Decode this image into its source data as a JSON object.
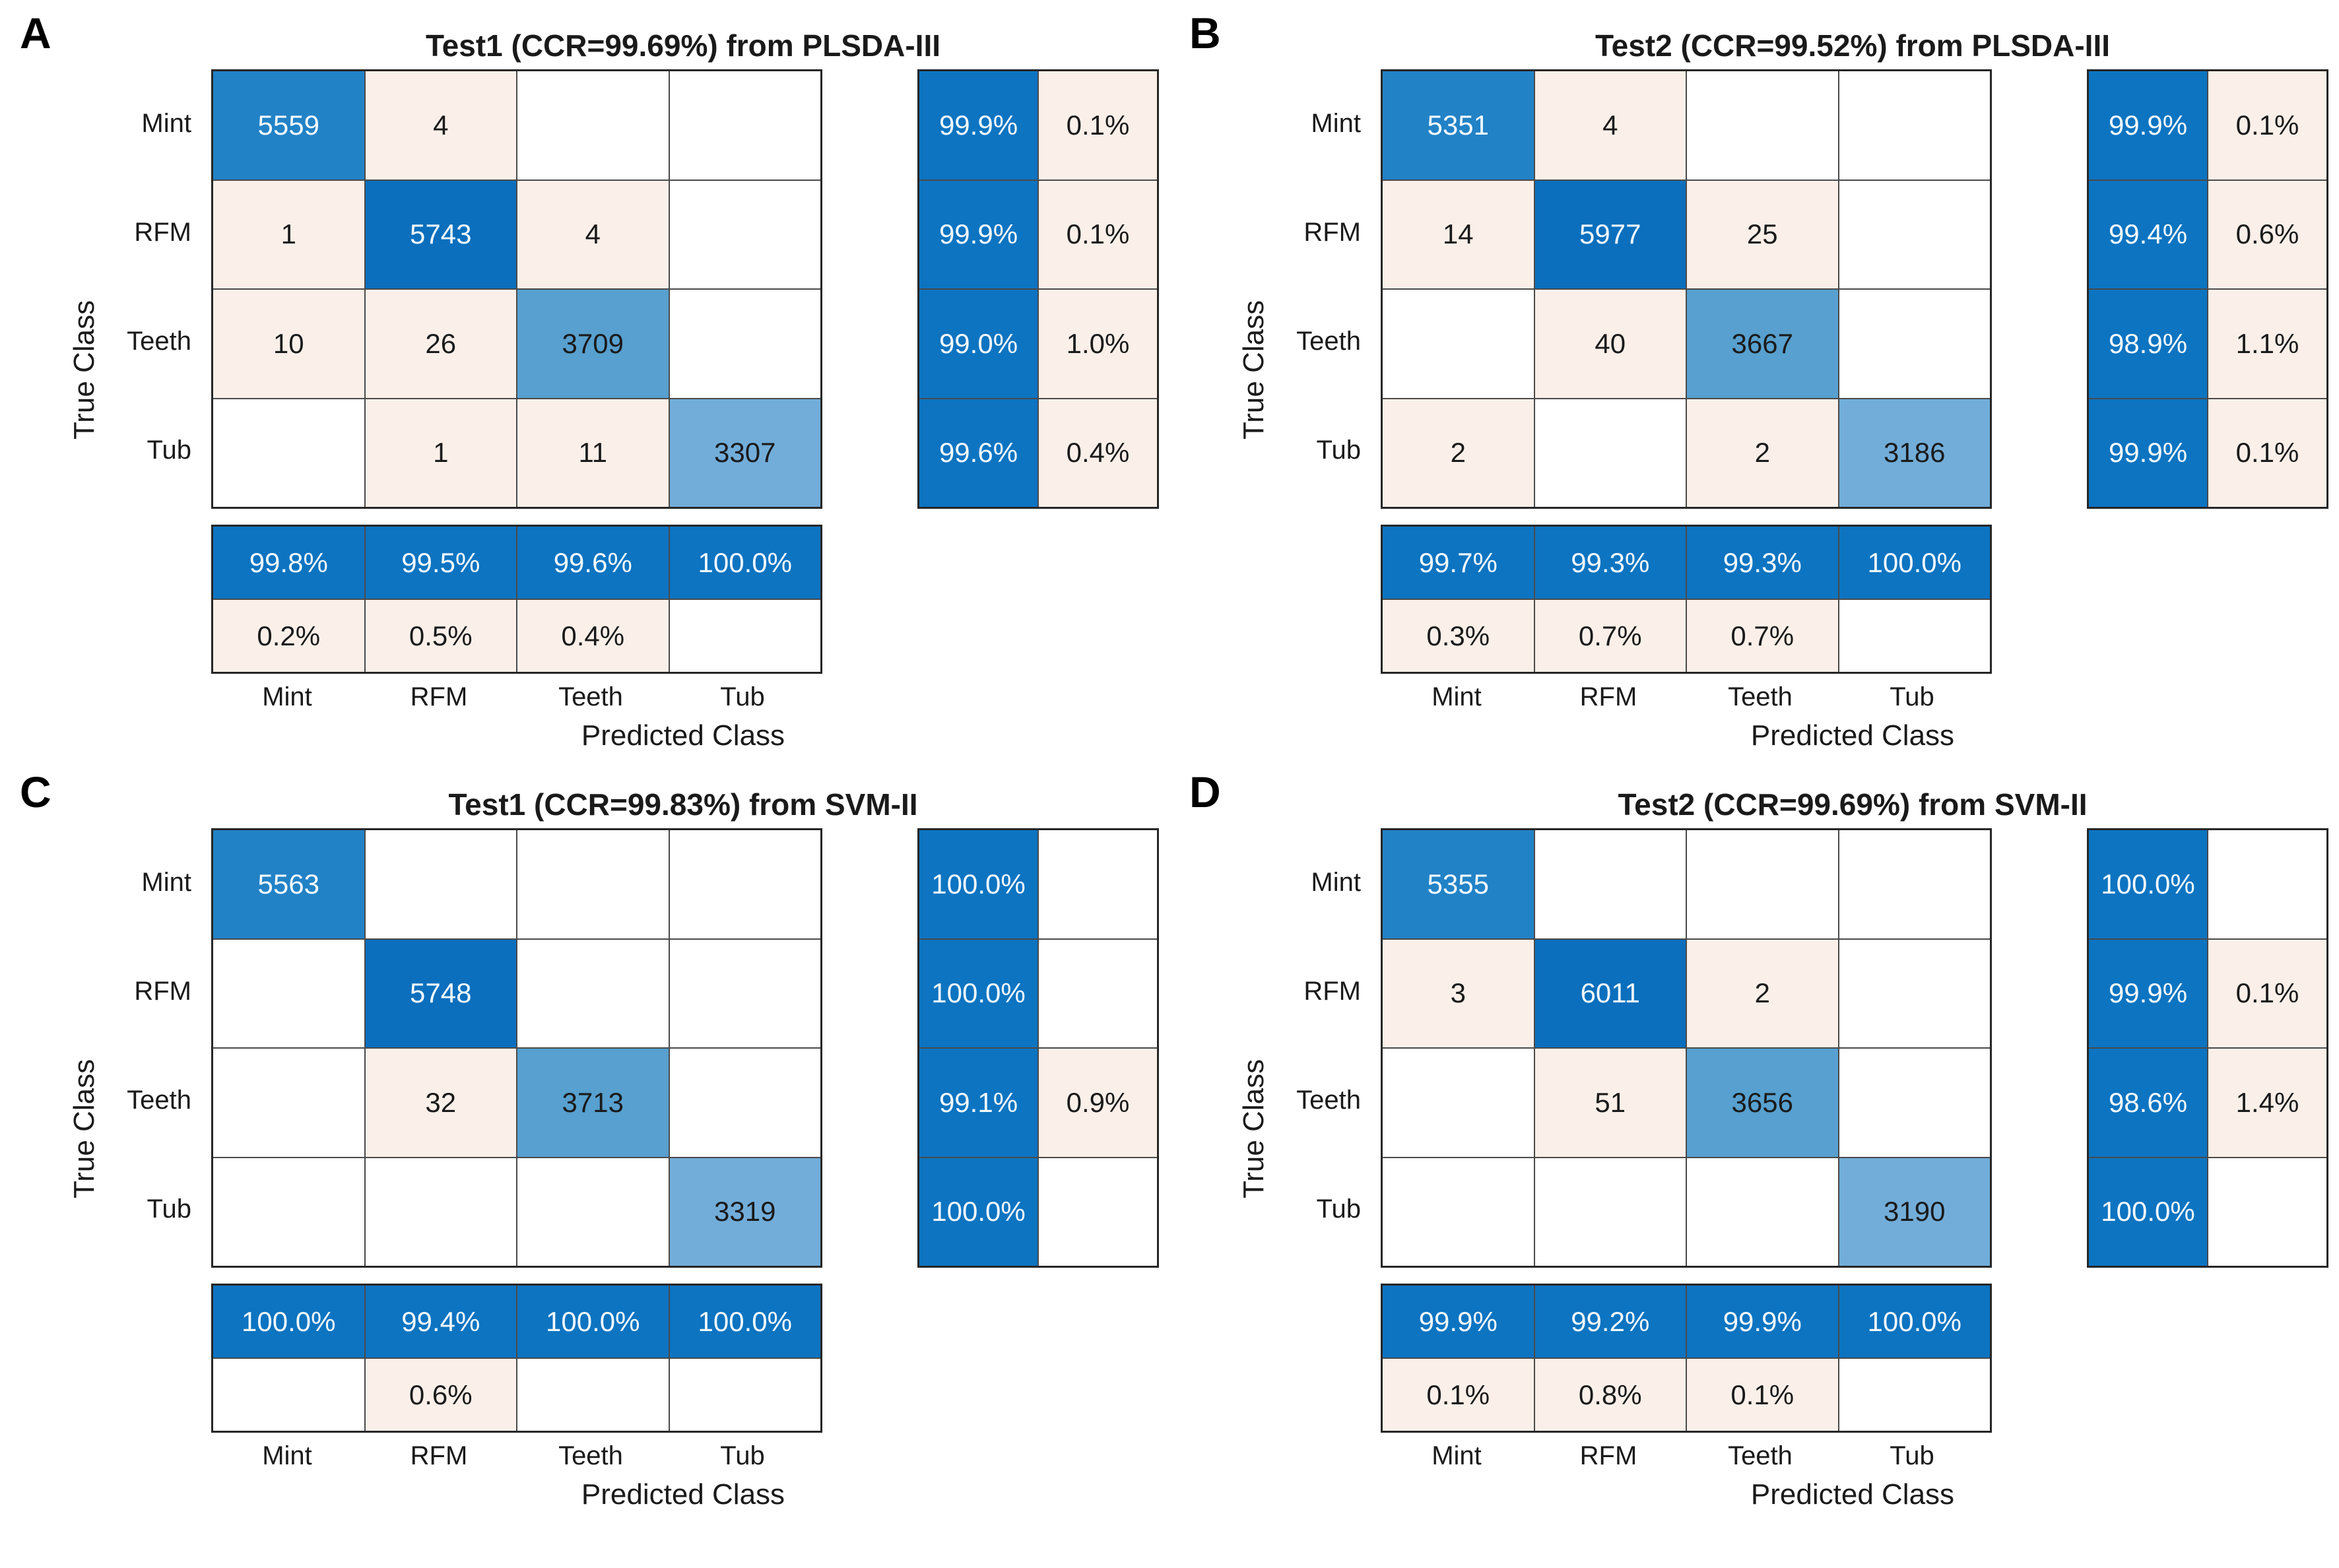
{
  "figure": {
    "background": "#ffffff",
    "description_palette": {
      "diagonal_dark_blue": "#0b6fbd",
      "diagonal_high_blue": "#2282c6",
      "diagonal_mid_blue": "#57a0cf",
      "diagonal_light_blue": "#72add9",
      "offdiagonal_pink": "#fbf0e9",
      "summary_blue": "#0d74c1",
      "grid_line": "#4a4a4a",
      "outer_border": "#262626",
      "text_dark": "#1a1a1a",
      "text_on_blue": "#f5faff"
    }
  },
  "chart_data": [
    {
      "type": "heatmap",
      "panel_label": "A",
      "title": "Test1 (CCR=99.69%) from PLSDA-III",
      "xlabel": "Predicted Class",
      "ylabel": "True Class",
      "classes": [
        "Mint",
        "RFM",
        "Teeth",
        "Tub"
      ],
      "matrix": [
        [
          5559,
          4,
          null,
          null
        ],
        [
          1,
          5743,
          4,
          null
        ],
        [
          10,
          26,
          3709,
          null
        ],
        [
          null,
          1,
          11,
          3307
        ]
      ],
      "shades": [
        [
          "high",
          "tint",
          "empty",
          "empty"
        ],
        [
          "tint",
          "max",
          "tint",
          "empty"
        ],
        [
          "tint",
          "tint",
          "mid",
          "empty"
        ],
        [
          "empty",
          "tint",
          "tint",
          "light"
        ]
      ],
      "row_summary": [
        [
          "99.9%",
          "0.1%"
        ],
        [
          "99.9%",
          "0.1%"
        ],
        [
          "99.0%",
          "1.0%"
        ],
        [
          "99.6%",
          "0.4%"
        ]
      ],
      "col_summary": [
        [
          "99.8%",
          "99.5%",
          "99.6%",
          "100.0%"
        ],
        [
          "0.2%",
          "0.5%",
          "0.4%",
          null
        ]
      ]
    },
    {
      "type": "heatmap",
      "panel_label": "B",
      "title": "Test2 (CCR=99.52%) from PLSDA-III",
      "xlabel": "Predicted Class",
      "ylabel": "True Class",
      "classes": [
        "Mint",
        "RFM",
        "Teeth",
        "Tub"
      ],
      "matrix": [
        [
          5351,
          4,
          null,
          null
        ],
        [
          14,
          5977,
          25,
          null
        ],
        [
          null,
          40,
          3667,
          null
        ],
        [
          2,
          null,
          2,
          3186
        ]
      ],
      "shades": [
        [
          "high",
          "tint",
          "empty",
          "empty"
        ],
        [
          "tint",
          "max",
          "tint",
          "empty"
        ],
        [
          "empty",
          "tint",
          "mid",
          "empty"
        ],
        [
          "tint",
          "empty",
          "tint",
          "light"
        ]
      ],
      "row_summary": [
        [
          "99.9%",
          "0.1%"
        ],
        [
          "99.4%",
          "0.6%"
        ],
        [
          "98.9%",
          "1.1%"
        ],
        [
          "99.9%",
          "0.1%"
        ]
      ],
      "col_summary": [
        [
          "99.7%",
          "99.3%",
          "99.3%",
          "100.0%"
        ],
        [
          "0.3%",
          "0.7%",
          "0.7%",
          null
        ]
      ]
    },
    {
      "type": "heatmap",
      "panel_label": "C",
      "title": "Test1 (CCR=99.83%) from SVM-II",
      "xlabel": "Predicted Class",
      "ylabel": "True Class",
      "classes": [
        "Mint",
        "RFM",
        "Teeth",
        "Tub"
      ],
      "matrix": [
        [
          5563,
          null,
          null,
          null
        ],
        [
          null,
          5748,
          null,
          null
        ],
        [
          null,
          32,
          3713,
          null
        ],
        [
          null,
          null,
          null,
          3319
        ]
      ],
      "shades": [
        [
          "high",
          "empty",
          "empty",
          "empty"
        ],
        [
          "empty",
          "max",
          "empty",
          "empty"
        ],
        [
          "empty",
          "tint",
          "mid",
          "empty"
        ],
        [
          "empty",
          "empty",
          "empty",
          "light"
        ]
      ],
      "row_summary": [
        [
          "100.0%",
          null
        ],
        [
          "100.0%",
          null
        ],
        [
          "99.1%",
          "0.9%"
        ],
        [
          "100.0%",
          null
        ]
      ],
      "col_summary": [
        [
          "100.0%",
          "99.4%",
          "100.0%",
          "100.0%"
        ],
        [
          null,
          "0.6%",
          null,
          null
        ]
      ]
    },
    {
      "type": "heatmap",
      "panel_label": "D",
      "title": "Test2 (CCR=99.69%) from SVM-II",
      "xlabel": "Predicted Class",
      "ylabel": "True Class",
      "classes": [
        "Mint",
        "RFM",
        "Teeth",
        "Tub"
      ],
      "matrix": [
        [
          5355,
          null,
          null,
          null
        ],
        [
          3,
          6011,
          2,
          null
        ],
        [
          null,
          51,
          3656,
          null
        ],
        [
          null,
          null,
          null,
          3190
        ]
      ],
      "shades": [
        [
          "high",
          "empty",
          "empty",
          "empty"
        ],
        [
          "tint",
          "max",
          "tint",
          "empty"
        ],
        [
          "empty",
          "tint",
          "mid",
          "empty"
        ],
        [
          "empty",
          "empty",
          "empty",
          "light"
        ]
      ],
      "row_summary": [
        [
          "100.0%",
          null
        ],
        [
          "99.9%",
          "0.1%"
        ],
        [
          "98.6%",
          "1.4%"
        ],
        [
          "100.0%",
          null
        ]
      ],
      "col_summary": [
        [
          "99.9%",
          "99.2%",
          "99.9%",
          "100.0%"
        ],
        [
          "0.1%",
          "0.8%",
          "0.1%",
          null
        ]
      ]
    }
  ]
}
